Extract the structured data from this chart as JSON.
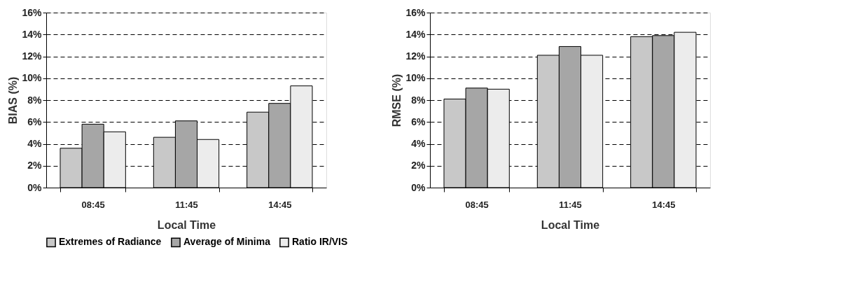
{
  "chart_data": [
    {
      "type": "bar",
      "xlabel": "Local Time",
      "ylabel": "BIAS (%)",
      "categories": [
        "08:45",
        "11:45",
        "14:45"
      ],
      "series": [
        {
          "name": "Extremes of Radiance",
          "color": "#c8c8c8",
          "values": [
            3.6,
            4.6,
            6.9
          ]
        },
        {
          "name": "Average of Minima",
          "color": "#a6a6a6",
          "values": [
            5.8,
            6.1,
            7.7
          ]
        },
        {
          "name": "Ratio IR/VIS",
          "color": "#ececec",
          "values": [
            5.1,
            4.4,
            9.3
          ]
        }
      ],
      "ylim": [
        0,
        16
      ],
      "yticks": [
        {
          "value": 0,
          "label": "0%"
        },
        {
          "value": 2,
          "label": "2%"
        },
        {
          "value": 4,
          "label": "4%"
        },
        {
          "value": 6,
          "label": "6%"
        },
        {
          "value": 8,
          "label": "8%"
        },
        {
          "value": 10,
          "label": "10%"
        },
        {
          "value": 12,
          "label": "12%"
        },
        {
          "value": 14,
          "label": "14%"
        },
        {
          "value": 16,
          "label": "16%"
        }
      ],
      "grid": "y",
      "legend": "bottom"
    },
    {
      "type": "bar",
      "xlabel": "Local Time",
      "ylabel": "RMSE (%)",
      "categories": [
        "08:45",
        "11:45",
        "14:45"
      ],
      "series": [
        {
          "color": "#c8c8c8",
          "values": [
            8.1,
            12.1,
            13.8
          ]
        },
        {
          "color": "#a6a6a6",
          "values": [
            9.1,
            12.9,
            13.9
          ]
        },
        {
          "color": "#ececec",
          "values": [
            9.0,
            12.1,
            14.2
          ]
        }
      ],
      "ylim": [
        0,
        16
      ],
      "yticks": [
        {
          "value": 0,
          "label": "0%"
        },
        {
          "value": 2,
          "label": "2%"
        },
        {
          "value": 4,
          "label": "4%"
        },
        {
          "value": 6,
          "label": "6%"
        },
        {
          "value": 8,
          "label": "8%"
        },
        {
          "value": 10,
          "label": "10%"
        },
        {
          "value": 12,
          "label": "12%"
        },
        {
          "value": 14,
          "label": "14%"
        },
        {
          "value": 16,
          "label": "16%"
        }
      ],
      "grid": "y",
      "legend": false
    }
  ]
}
